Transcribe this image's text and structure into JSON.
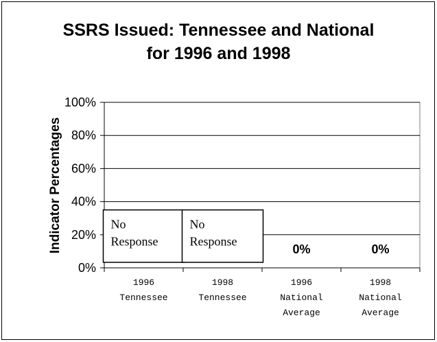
{
  "chart_data": {
    "type": "bar",
    "title": "SSRS Issued: Tennessee and National",
    "subtitle": "for 1996 and 1998",
    "ylabel": "Indicator Percentages",
    "xlabel": "",
    "ylim": [
      0,
      100
    ],
    "yticks": [
      "0%",
      "20%",
      "40%",
      "60%",
      "80%",
      "100%"
    ],
    "categories": [
      [
        "1996",
        "Tennessee"
      ],
      [
        "1998",
        "Tennessee"
      ],
      [
        "1996",
        "National",
        "Average"
      ],
      [
        "1998",
        "National",
        "Average"
      ]
    ],
    "values": [
      null,
      null,
      0,
      0
    ],
    "data_labels": [
      "",
      "",
      "0%",
      "0%"
    ],
    "annotations": [
      {
        "category": 0,
        "lines": [
          "No",
          "Response"
        ]
      },
      {
        "category": 1,
        "lines": [
          "No",
          "Response"
        ]
      }
    ],
    "grid": true,
    "legend": "none"
  }
}
